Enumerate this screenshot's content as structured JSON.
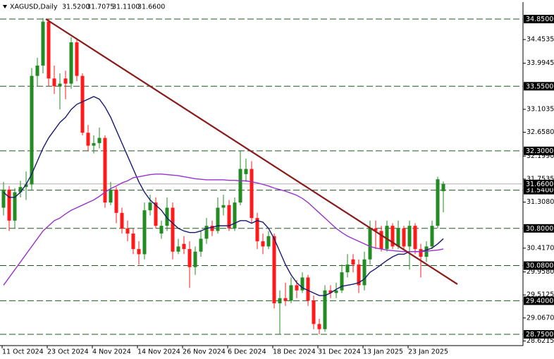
{
  "header": {
    "symbol": "XAGUSD,Daily",
    "ohlc": [
      "31.5200",
      "31.7075",
      "31.1100",
      "31.6600"
    ]
  },
  "chart_data": {
    "type": "candlestick",
    "categories": [
      "11 Oct 2024",
      null,
      null,
      null,
      null,
      null,
      null,
      null,
      "23 Oct 2024",
      null,
      null,
      null,
      null,
      null,
      null,
      null,
      "4 Nov 2024",
      null,
      null,
      null,
      null,
      null,
      null,
      null,
      "14 Nov 2024",
      null,
      null,
      null,
      null,
      null,
      null,
      null,
      "26 Nov 2024",
      null,
      null,
      null,
      null,
      null,
      null,
      null,
      "6 Dec 2024",
      null,
      null,
      null,
      null,
      null,
      null,
      null,
      "18 Dec 2024",
      null,
      null,
      null,
      null,
      null,
      null,
      null,
      "31 Dec 2024",
      null,
      null,
      null,
      null,
      null,
      null,
      null,
      "13 Jan 2025",
      null,
      null,
      null,
      null,
      null,
      null,
      null,
      "23 Jan 2025",
      null,
      null,
      null,
      null,
      null,
      null
    ],
    "open": [
      31.2,
      31.55,
      30.95,
      31.5,
      31.6,
      31.65,
      33.75,
      33.95,
      34.8,
      33.7,
      33.55,
      33.7,
      33.6,
      34.4,
      33.75,
      32.65,
      32.4,
      32.45,
      32.55,
      31.3,
      31.55,
      31.1,
      30.8,
      30.7,
      30.4,
      30.3,
      31.15,
      31.3,
      30.7,
      30.85,
      31.2,
      30.35,
      30.5,
      30.4,
      30.05,
      30.35,
      30.6,
      30.85,
      30.75,
      31.2,
      31.25,
      30.8,
      31.3,
      31.85,
      31.95,
      31.0,
      30.55,
      30.45,
      30.65,
      29.35,
      29.45,
      29.4,
      29.7,
      29.6,
      29.85,
      29.4,
      28.95,
      28.85,
      29.6,
      29.55,
      29.6,
      29.95,
      30.2,
      30.1,
      29.7,
      30.2,
      30.8,
      30.75,
      30.4,
      30.85,
      30.45,
      30.8,
      30.45,
      30.85,
      30.4,
      30.25,
      30.45,
      30.85,
      31.52
    ],
    "high": [
      31.7,
      31.62,
      31.58,
      31.72,
      31.9,
      33.9,
      34.1,
      34.87,
      34.85,
      33.95,
      33.8,
      33.85,
      34.5,
      34.45,
      33.8,
      32.8,
      32.6,
      32.75,
      32.6,
      31.7,
      31.6,
      31.2,
      30.95,
      30.8,
      30.55,
      31.3,
      31.45,
      31.4,
      30.95,
      31.4,
      31.3,
      30.6,
      30.65,
      30.55,
      30.45,
      30.75,
      31.0,
      30.95,
      31.4,
      31.45,
      31.35,
      31.4,
      32.3,
      32.15,
      32.1,
      31.1,
      30.7,
      30.75,
      30.7,
      29.6,
      29.75,
      29.85,
      29.8,
      29.95,
      29.9,
      29.5,
      29.05,
      29.7,
      29.7,
      29.75,
      30.1,
      30.3,
      30.3,
      30.2,
      30.35,
      30.95,
      30.95,
      30.85,
      30.95,
      30.9,
      30.95,
      30.85,
      30.95,
      30.9,
      30.5,
      30.55,
      30.95,
      31.8,
      31.7075
    ],
    "low": [
      31.05,
      30.75,
      30.8,
      31.4,
      31.35,
      31.55,
      33.55,
      33.8,
      33.55,
      33.4,
      33.1,
      33.3,
      33.5,
      33.65,
      32.6,
      32.3,
      32.25,
      32.35,
      31.2,
      31.25,
      30.9,
      30.7,
      30.55,
      30.3,
      30.1,
      30.2,
      31.05,
      30.8,
      30.6,
      30.75,
      30.2,
      30.3,
      30.3,
      29.65,
      29.9,
      30.25,
      30.5,
      30.65,
      30.7,
      31.05,
      30.75,
      30.75,
      31.25,
      31.7,
      30.9,
      30.4,
      30.3,
      30.4,
      29.25,
      28.75,
      29.3,
      29.35,
      29.45,
      29.55,
      29.3,
      28.85,
      28.75,
      28.8,
      29.45,
      29.45,
      29.55,
      29.85,
      29.95,
      29.55,
      29.6,
      30.1,
      30.4,
      30.35,
      30.35,
      30.4,
      30.4,
      30.4,
      30.0,
      30.3,
      29.85,
      30.15,
      30.4,
      30.8,
      31.11
    ],
    "close": [
      31.55,
      30.95,
      31.5,
      31.6,
      31.65,
      33.75,
      33.95,
      34.8,
      33.7,
      33.55,
      33.6,
      33.6,
      34.4,
      33.75,
      32.65,
      32.4,
      32.45,
      32.55,
      31.3,
      31.55,
      31.1,
      30.8,
      30.7,
      30.4,
      30.3,
      31.15,
      31.3,
      30.85,
      30.85,
      31.2,
      30.35,
      30.45,
      30.4,
      30.05,
      30.35,
      30.6,
      30.85,
      30.75,
      31.2,
      31.25,
      30.8,
      31.3,
      31.95,
      31.95,
      31.0,
      30.55,
      30.45,
      30.65,
      29.35,
      29.45,
      29.4,
      29.7,
      29.6,
      29.85,
      29.4,
      28.95,
      28.85,
      29.6,
      29.55,
      29.6,
      29.95,
      30.1,
      30.1,
      29.7,
      30.2,
      30.8,
      30.75,
      30.4,
      30.85,
      30.45,
      30.8,
      30.45,
      30.85,
      30.4,
      30.25,
      30.45,
      30.85,
      31.75,
      31.66
    ],
    "up_color": "#228b22",
    "down_color": "#ff1a1a",
    "series": [
      {
        "color": "#191970",
        "values": [
          31.5,
          31.4,
          31.4,
          31.5,
          31.65,
          31.85,
          32.1,
          32.35,
          32.55,
          32.7,
          32.85,
          32.95,
          33.1,
          33.2,
          33.25,
          33.3,
          33.35,
          33.3,
          33.15,
          32.95,
          32.7,
          32.45,
          32.2,
          31.95,
          31.7,
          31.5,
          31.35,
          31.25,
          31.15,
          31.0,
          30.9,
          30.8,
          30.75,
          30.72,
          30.72,
          30.75,
          30.8,
          30.82,
          30.85,
          30.85,
          30.85,
          30.9,
          30.95,
          30.95,
          30.9,
          30.95,
          30.92,
          30.8,
          30.6,
          30.35,
          30.1,
          29.9,
          29.75,
          29.65,
          29.6,
          29.55,
          29.5,
          29.5,
          29.55,
          29.62,
          29.68,
          29.7,
          29.72,
          29.75,
          29.82,
          29.95,
          30.02,
          30.1,
          30.18,
          30.25,
          30.3,
          30.3,
          30.35,
          30.35,
          30.35,
          30.38,
          30.42,
          30.5,
          30.6
        ]
      },
      {
        "color": "#9932cc",
        "values": [
          29.7,
          29.85,
          30.0,
          30.15,
          30.3,
          30.45,
          30.6,
          30.75,
          30.85,
          30.95,
          31.0,
          31.08,
          31.15,
          31.2,
          31.25,
          31.3,
          31.35,
          31.42,
          31.5,
          31.57,
          31.62,
          31.68,
          31.72,
          31.78,
          31.8,
          31.82,
          31.84,
          31.85,
          31.85,
          31.84,
          31.83,
          31.82,
          31.8,
          31.78,
          31.76,
          31.75,
          31.74,
          31.74,
          31.74,
          31.74,
          31.73,
          31.73,
          31.72,
          31.72,
          31.7,
          31.68,
          31.65,
          31.62,
          31.58,
          31.55,
          31.52,
          31.48,
          31.44,
          31.38,
          31.3,
          31.2,
          31.1,
          31.0,
          30.9,
          30.8,
          30.72,
          30.65,
          30.6,
          30.55,
          30.5,
          30.45,
          30.42,
          30.4,
          30.38,
          30.37,
          30.36,
          30.35,
          30.35,
          30.35,
          30.35,
          30.36,
          30.37,
          30.38,
          30.4
        ]
      }
    ],
    "trendline": {
      "color": "#8b1a1a",
      "points": [
        {
          "index": 7.5,
          "price": 34.85
        },
        {
          "index": 80.5,
          "price": 29.72
        }
      ]
    },
    "levels": [
      {
        "value": 34.85,
        "label": "34.8500"
      },
      {
        "value": 33.55,
        "label": "33.5500"
      },
      {
        "value": 32.3,
        "label": "32.3000"
      },
      {
        "value": 31.54,
        "label": "31.5400"
      },
      {
        "value": 30.8,
        "label": "30.8000"
      },
      {
        "value": 30.08,
        "label": "30.0800"
      },
      {
        "value": 29.4,
        "label": "29.4000"
      },
      {
        "value": 28.75,
        "label": "28.7500"
      }
    ],
    "level_color": "#1e5a1e",
    "last": {
      "value": 31.66,
      "label": "31.6600"
    },
    "ylim": [
      28.532,
      35.082
    ],
    "yticks": [
      34.4535,
      33.9945,
      33.1035,
      {
        "value": 32.658,
        "label": "32.6580"
      },
      {
        "value": 32.199,
        "label": "32.1990"
      },
      31.7535,
      {
        "value": 31.308,
        "label": "31.3080"
      },
      {
        "value": 30.417,
        "label": "30.4170"
      },
      {
        "value": 29.958,
        "label": "29.9580"
      },
      29.5125,
      {
        "value": 29.067,
        "label": "29.0670"
      },
      28.6215
    ]
  }
}
